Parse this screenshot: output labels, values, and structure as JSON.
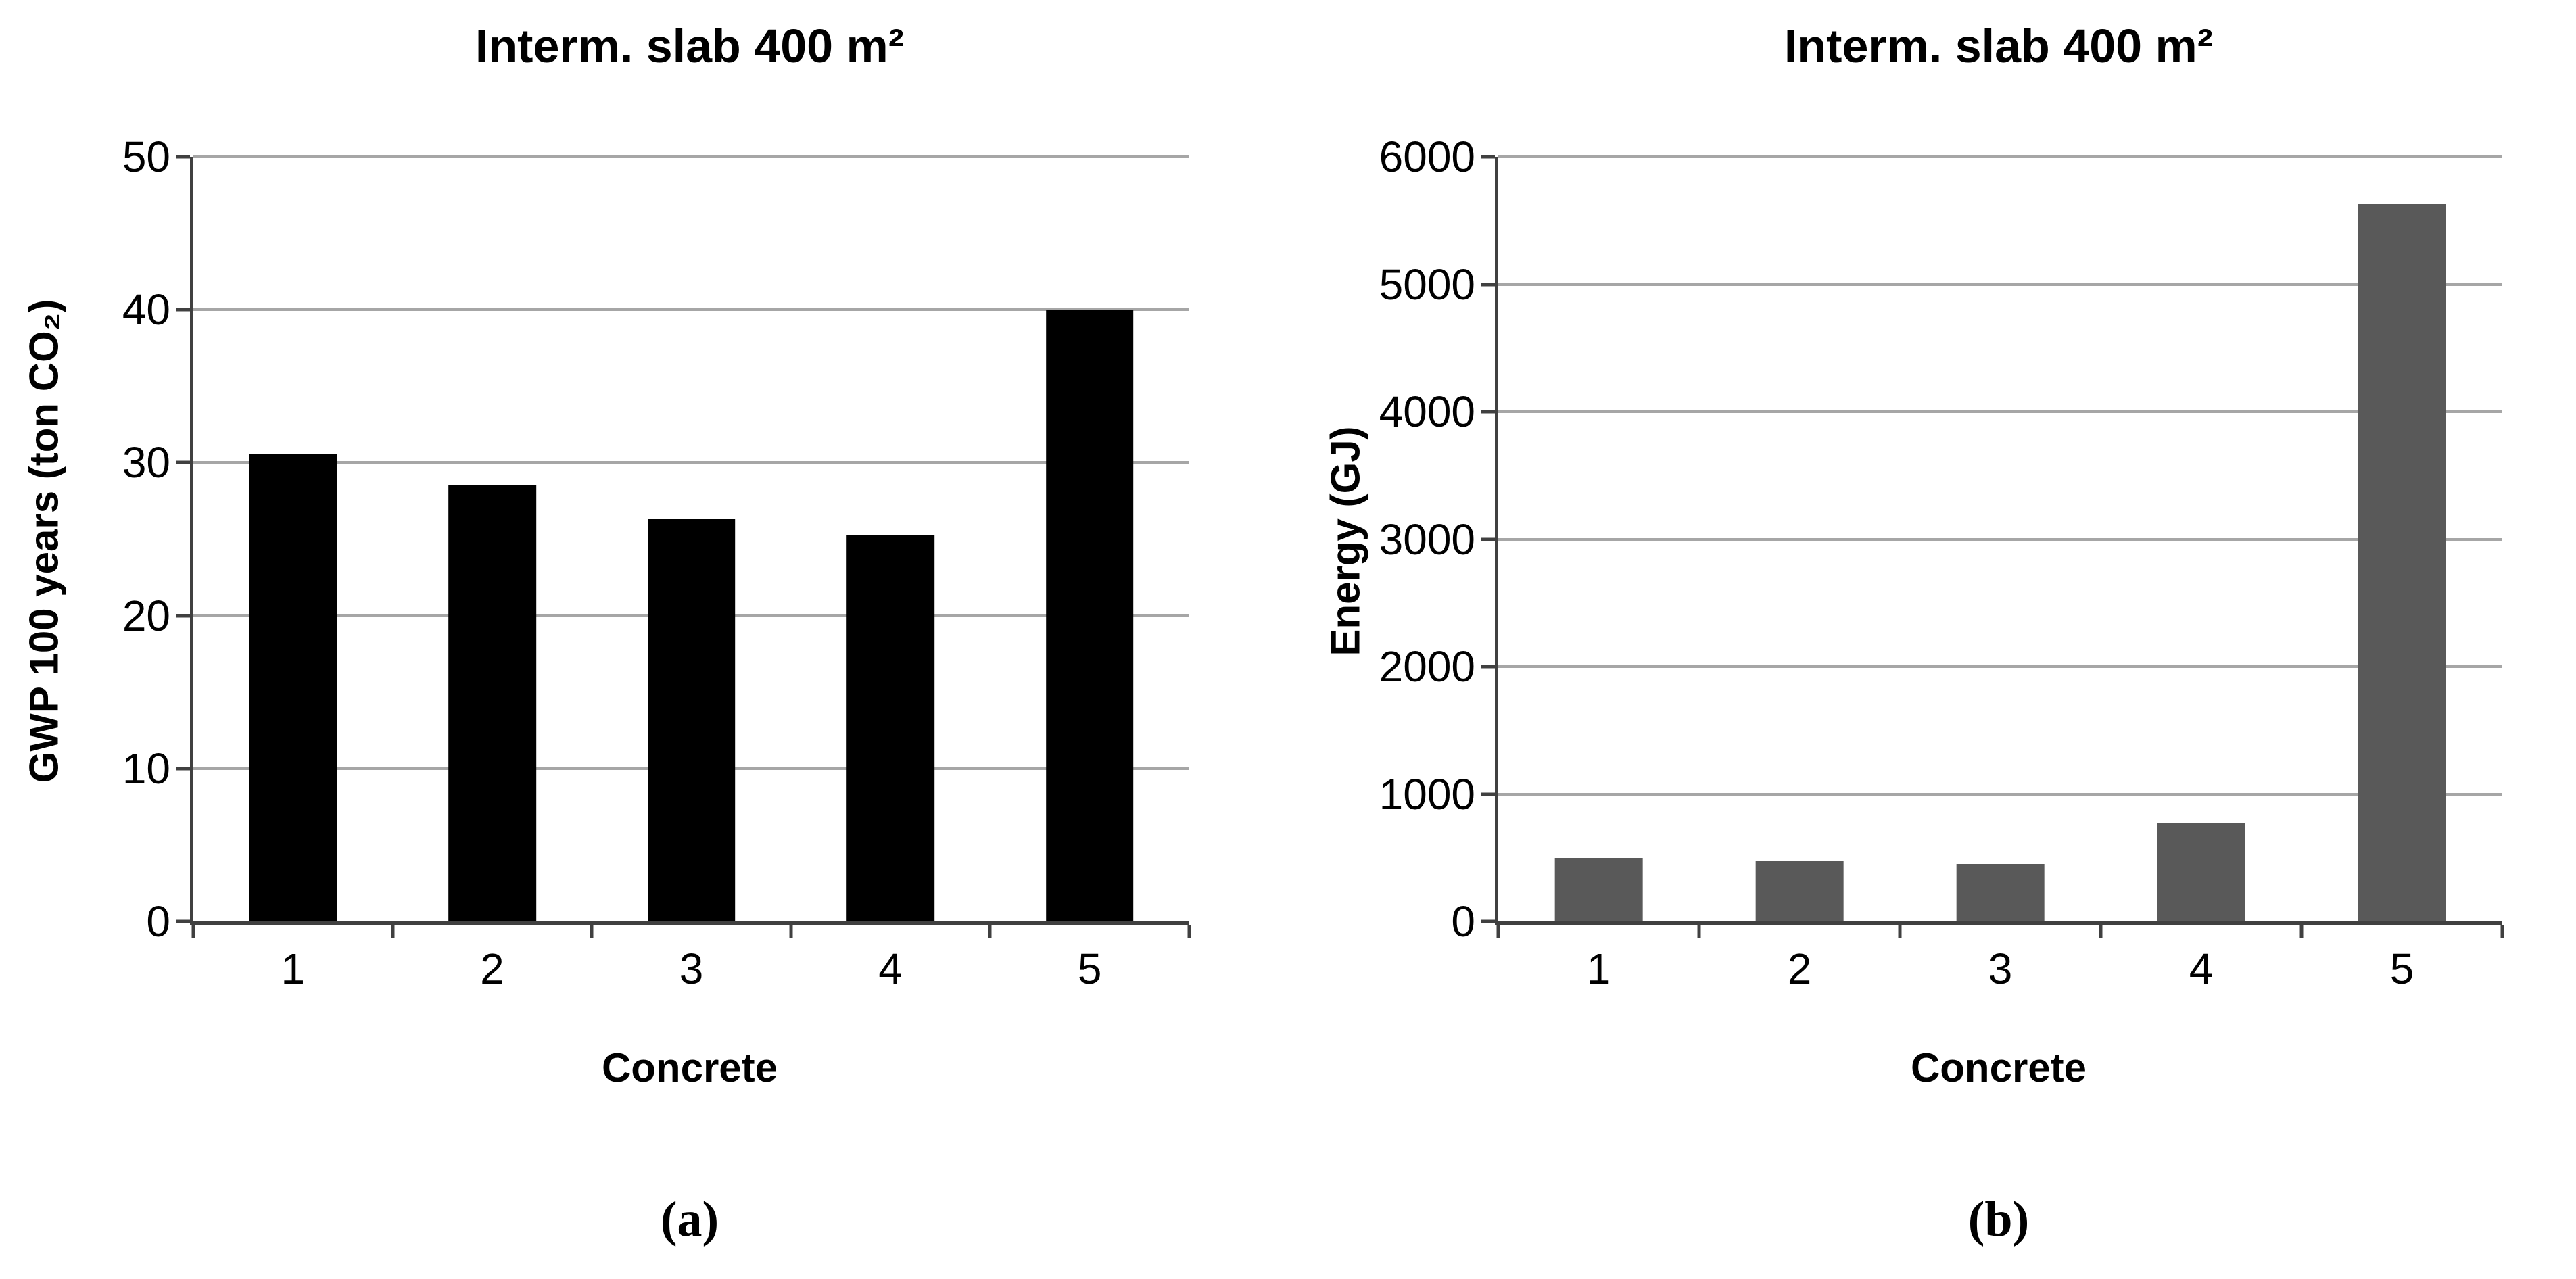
{
  "figure": {
    "panels": [
      {
        "letter": "(a)"
      },
      {
        "letter": "(b)"
      }
    ]
  },
  "chart_data": [
    {
      "type": "bar",
      "title": "Interm. slab 400 m²",
      "categories": [
        "1",
        "2",
        "3",
        "4",
        "5"
      ],
      "values": [
        30.6,
        28.5,
        26.3,
        25.3,
        40
      ],
      "xlabel": "Concrete",
      "ylabel": "GWP 100 years (ton CO₂)",
      "ylim": [
        0,
        50
      ],
      "ytick_step": 10,
      "grid": true,
      "legend": "none",
      "bar_color": "#000000",
      "gridline_color": "#a6a6a6",
      "axis_color": "#404040"
    },
    {
      "type": "bar",
      "title": "Interm. slab 400 m²",
      "categories": [
        "1",
        "2",
        "3",
        "4",
        "5"
      ],
      "values": [
        500,
        470,
        450,
        770,
        5630
      ],
      "xlabel": "Concrete",
      "ylabel": "Energy (GJ)",
      "ylim": [
        0,
        6000
      ],
      "ytick_step": 1000,
      "grid": true,
      "legend": "none",
      "bar_color": "#595959",
      "gridline_color": "#a6a6a6",
      "axis_color": "#404040"
    }
  ]
}
